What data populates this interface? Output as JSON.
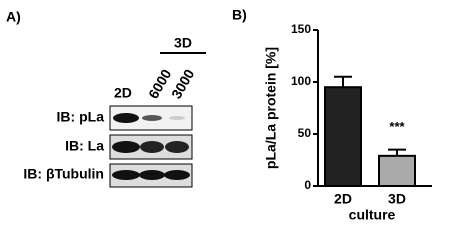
{
  "panel_a": {
    "label": "A)",
    "group": "3D",
    "lanes": [
      "2D",
      "6000",
      "3000"
    ],
    "rows": [
      "IB: pLa",
      "IB: La",
      "IB: βTubulin"
    ]
  },
  "chart_data": {
    "type": "bar",
    "label": "B)",
    "ylabel": "pLa/La protein [%]",
    "xlabel": "culture",
    "categories": [
      "2D",
      "3D"
    ],
    "values": [
      95,
      29
    ],
    "errors": [
      10,
      6
    ],
    "colors": [
      "#222222",
      "#aaaaaa"
    ],
    "annotation": "***",
    "ylim": [
      0,
      150
    ],
    "yticks": [
      0,
      50,
      100,
      150
    ]
  }
}
